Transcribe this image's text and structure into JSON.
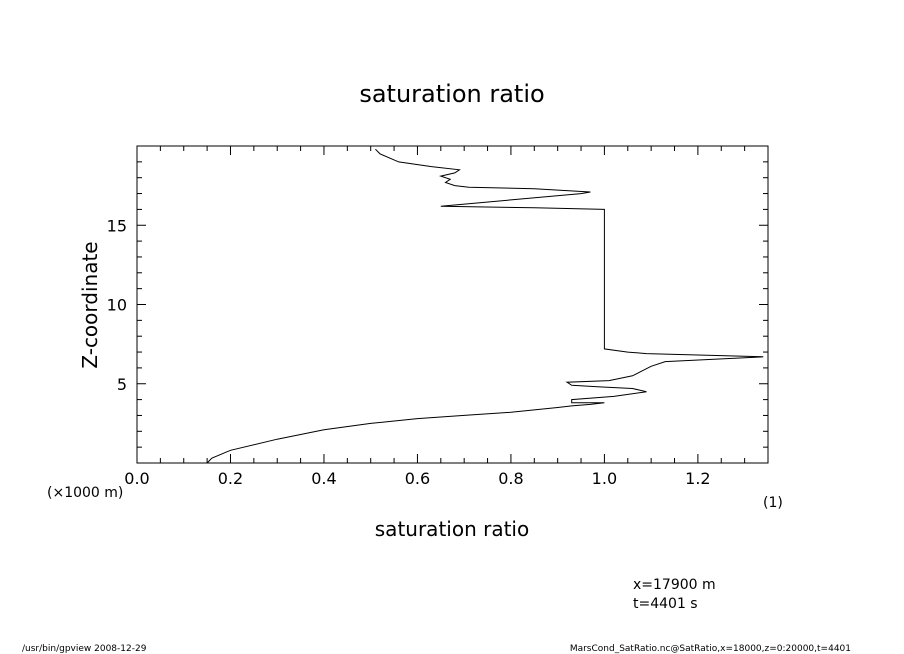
{
  "chart_data": {
    "type": "line",
    "title": "saturation ratio",
    "xlabel": "saturation ratio",
    "ylabel": "Z-coordinate",
    "x_unit_label": "(1)",
    "y_unit_label": "(×1000 m)",
    "xlim": [
      0.0,
      1.35
    ],
    "ylim": [
      0.0,
      20.0
    ],
    "x_ticks": [
      "0.0",
      "0.2",
      "0.4",
      "0.6",
      "0.8",
      "1.0",
      "1.2"
    ],
    "y_ticks": [
      "5",
      "10",
      "15"
    ],
    "grid": false,
    "series": [
      {
        "points": [
          [
            0.15,
            0.0
          ],
          [
            0.16,
            0.3
          ],
          [
            0.2,
            0.8
          ],
          [
            0.3,
            1.5
          ],
          [
            0.4,
            2.1
          ],
          [
            0.5,
            2.5
          ],
          [
            0.6,
            2.8
          ],
          [
            0.7,
            3.0
          ],
          [
            0.8,
            3.2
          ],
          [
            0.9,
            3.5
          ],
          [
            0.93,
            3.6
          ],
          [
            0.97,
            3.7
          ],
          [
            1.0,
            3.8
          ],
          [
            0.93,
            3.8
          ],
          [
            0.93,
            4.0
          ],
          [
            1.02,
            4.2
          ],
          [
            1.09,
            4.5
          ],
          [
            1.06,
            4.7
          ],
          [
            0.99,
            4.8
          ],
          [
            0.93,
            4.9
          ],
          [
            0.92,
            5.1
          ],
          [
            1.01,
            5.2
          ],
          [
            1.06,
            5.5
          ],
          [
            1.08,
            5.8
          ],
          [
            1.1,
            6.1
          ],
          [
            1.13,
            6.4
          ],
          [
            1.34,
            6.7
          ],
          [
            1.09,
            6.9
          ],
          [
            1.05,
            7.0
          ],
          [
            1.0,
            7.2
          ],
          [
            1.0,
            8.0
          ],
          [
            1.0,
            10.0
          ],
          [
            1.0,
            12.0
          ],
          [
            1.0,
            14.0
          ],
          [
            1.0,
            16.0
          ],
          [
            0.85,
            16.1
          ],
          [
            0.65,
            16.2
          ],
          [
            0.8,
            16.6
          ],
          [
            0.95,
            17.0
          ],
          [
            0.97,
            17.1
          ],
          [
            0.85,
            17.3
          ],
          [
            0.71,
            17.4
          ],
          [
            0.68,
            17.5
          ],
          [
            0.66,
            17.7
          ],
          [
            0.67,
            17.9
          ],
          [
            0.65,
            18.1
          ],
          [
            0.68,
            18.3
          ],
          [
            0.69,
            18.5
          ],
          [
            0.63,
            18.7
          ],
          [
            0.56,
            19.0
          ],
          [
            0.52,
            19.5
          ],
          [
            0.51,
            19.8
          ]
        ]
      }
    ]
  },
  "annotations": {
    "coord_x": "x=17900  m",
    "coord_t": "t=4401  s"
  },
  "footer": {
    "left": "/usr/bin/gpview   2008-12-29",
    "right": "MarsCond_SatRatio.nc@SatRatio,x=18000,z=0:20000,t=4401"
  }
}
